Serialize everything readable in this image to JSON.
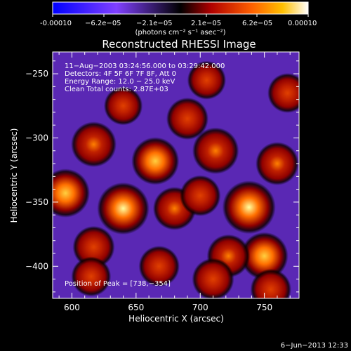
{
  "colorbar": {
    "ticks": [
      "-0.00010",
      "−6.2e−05",
      "−2.1e−05",
      "2.1e−05",
      "6.2e−05",
      "0.00010"
    ],
    "unit_label": "(photons cm⁻² s⁻¹ asec⁻²)",
    "colors": [
      "#0000ff",
      "#8040ff",
      "#000000",
      "#b00000",
      "#ff6000",
      "#ffc000",
      "#ffffff"
    ]
  },
  "chart_data": {
    "type": "heatmap",
    "title": "Reconstructed RHESSI Image",
    "xlabel": "Heliocentric X (arcsec)",
    "ylabel": "Heliocentric Y (arcsec)",
    "xlim": [
      585,
      777
    ],
    "ylim": [
      -425,
      -233
    ],
    "x_ticks": [
      600,
      650,
      700,
      750
    ],
    "y_ticks": [
      -250,
      -300,
      -350,
      -400
    ],
    "value_range": [
      -0.0001,
      0.0001
    ],
    "sources": [
      {
        "x": 738,
        "y": -354,
        "intensity": 1.0
      },
      {
        "x": 640,
        "y": -355,
        "intensity": 0.95
      },
      {
        "x": 595,
        "y": -343,
        "intensity": 0.8
      },
      {
        "x": 665,
        "y": -318,
        "intensity": 0.75
      },
      {
        "x": 712,
        "y": -310,
        "intensity": 0.7
      },
      {
        "x": 750,
        "y": -392,
        "intensity": 0.75
      },
      {
        "x": 617,
        "y": -305,
        "intensity": 0.65
      },
      {
        "x": 680,
        "y": -355,
        "intensity": 0.55
      },
      {
        "x": 722,
        "y": -392,
        "intensity": 0.55
      },
      {
        "x": 668,
        "y": -400,
        "intensity": 0.45
      },
      {
        "x": 690,
        "y": -285,
        "intensity": 0.5
      },
      {
        "x": 760,
        "y": -320,
        "intensity": 0.55
      },
      {
        "x": 617,
        "y": -385,
        "intensity": 0.5
      },
      {
        "x": 640,
        "y": -275,
        "intensity": 0.35
      },
      {
        "x": 768,
        "y": -265,
        "intensity": 0.4
      },
      {
        "x": 705,
        "y": -255,
        "intensity": 0.35
      },
      {
        "x": 615,
        "y": -408,
        "intensity": 0.4
      },
      {
        "x": 755,
        "y": -418,
        "intensity": 0.45
      },
      {
        "x": 710,
        "y": -410,
        "intensity": 0.5
      },
      {
        "x": 700,
        "y": -345,
        "intensity": 0.45
      }
    ],
    "annotations": {
      "time": "11−Aug−2003 03:24:56.000 to 03:29:42.000",
      "detectors": "Detectors: 4F 5F 6F 7F 8F, Att 0",
      "energy": "Energy Range: 12.0 − 25.0 keV",
      "clean": "Clean     Total counts: 2.87E+03",
      "peak": "Position of Peak = [738,−354]"
    }
  },
  "footer": {
    "date": "6−Jun−2013 12:33"
  }
}
